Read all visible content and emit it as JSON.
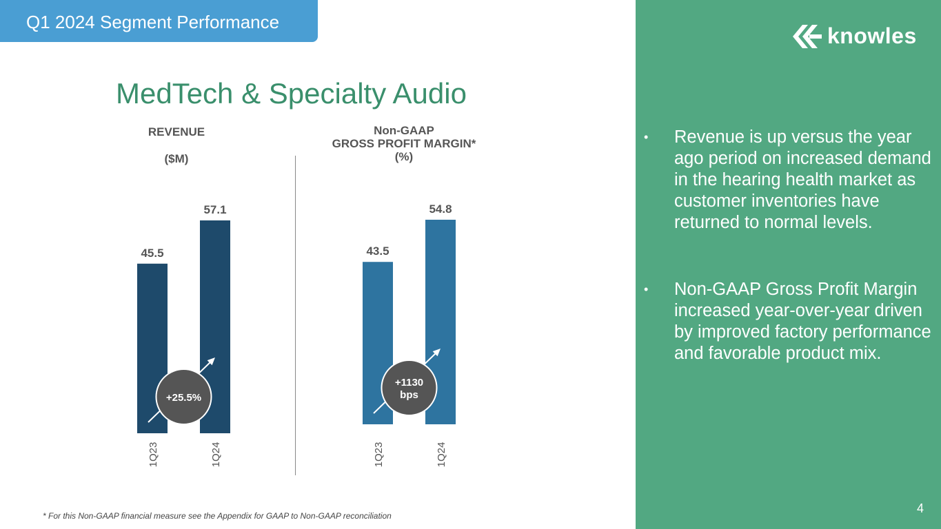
{
  "header": {
    "tab_label": "Q1 2024 Segment Performance"
  },
  "slide": {
    "title": "MedTech & Specialty Audio",
    "footnote": "* For this Non-GAAP financial measure see the Appendix for GAAP to Non-GAAP reconciliation",
    "page_number": "4"
  },
  "logo": {
    "text": "knowles"
  },
  "bullets": [
    "Revenue is up versus the year ago period on increased demand in the hearing health market as customer inventories have returned to normal levels.",
    "Non-GAAP Gross Profit Margin increased year-over-year driven by improved factory performance and favorable product mix."
  ],
  "bullet_marker": "•",
  "colors": {
    "revenue_bar": "#1e4a6b",
    "margin_bar": "#2e74a0",
    "badge": "#555555",
    "panel": "#52a882",
    "header": "#4a9ed3",
    "title": "#3a8f6c"
  },
  "chart_data": [
    {
      "type": "bar",
      "title_line1": "REVENUE",
      "title_line2": "($M)",
      "categories": [
        "1Q23",
        "1Q24"
      ],
      "values": [
        45.5,
        57.1
      ],
      "value_labels": [
        "45.5",
        "57.1"
      ],
      "change_label": "+25.5%",
      "ylim": [
        0,
        57.1
      ]
    },
    {
      "type": "bar",
      "title_lines": [
        "Non-GAAP",
        "GROSS PROFIT MARGIN*",
        "(%)"
      ],
      "categories": [
        "1Q23",
        "1Q24"
      ],
      "values": [
        43.5,
        54.8
      ],
      "value_labels": [
        "43.5",
        "54.8"
      ],
      "change_label_lines": [
        "+1130",
        "bps"
      ],
      "ylim": [
        0,
        54.8
      ]
    }
  ]
}
